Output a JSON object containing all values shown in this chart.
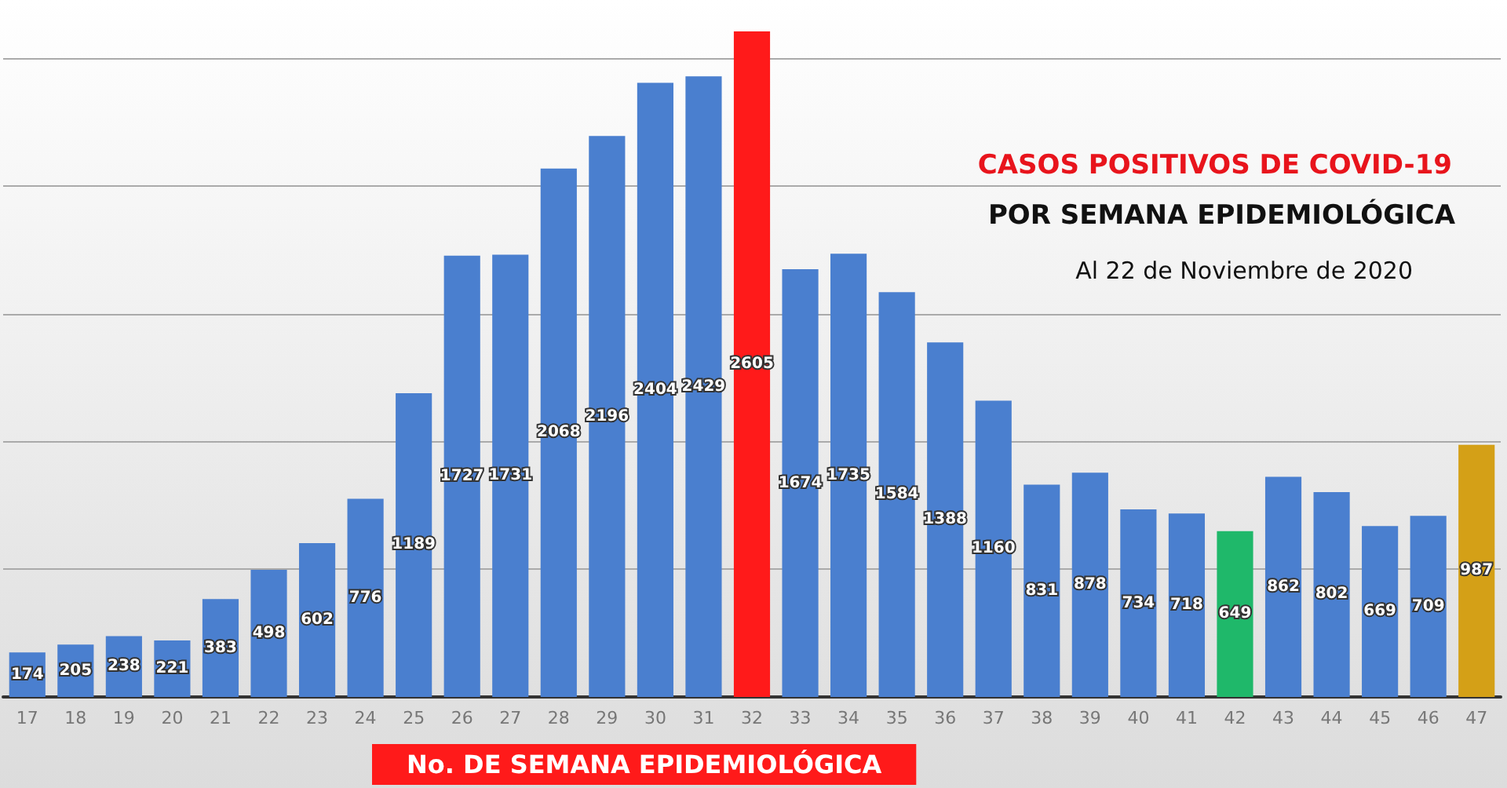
{
  "chart_data": {
    "type": "bar",
    "title": "CASOS POSITIVOS DE COVID-19",
    "subtitle": "POR SEMANA EPIDEMIOLÓGICA",
    "xlabel": "No. DE SEMANA EPIDEMIOLÓGICA",
    "annotations": [
      "Al 22 de Noviembre de 2020"
    ],
    "categories": [
      "17",
      "18",
      "19",
      "20",
      "21",
      "22",
      "23",
      "24",
      "25",
      "26",
      "27",
      "28",
      "29",
      "30",
      "31",
      "32",
      "33",
      "34",
      "35",
      "36",
      "37",
      "38",
      "39",
      "40",
      "41",
      "42",
      "43",
      "44",
      "45",
      "46",
      "47"
    ],
    "values": [
      174,
      205,
      238,
      221,
      383,
      498,
      602,
      776,
      1189,
      1727,
      1731,
      2068,
      2196,
      2404,
      2429,
      2605,
      1674,
      1735,
      1584,
      1388,
      1160,
      831,
      878,
      734,
      718,
      649,
      862,
      802,
      669,
      709,
      987
    ],
    "colors": [
      "#4a7fcf",
      "#4a7fcf",
      "#4a7fcf",
      "#4a7fcf",
      "#4a7fcf",
      "#4a7fcf",
      "#4a7fcf",
      "#4a7fcf",
      "#4a7fcf",
      "#4a7fcf",
      "#4a7fcf",
      "#4a7fcf",
      "#4a7fcf",
      "#4a7fcf",
      "#4a7fcf",
      "#ff1a1a",
      "#4a7fcf",
      "#4a7fcf",
      "#4a7fcf",
      "#4a7fcf",
      "#4a7fcf",
      "#4a7fcf",
      "#4a7fcf",
      "#4a7fcf",
      "#4a7fcf",
      "#1fb86a",
      "#4a7fcf",
      "#4a7fcf",
      "#4a7fcf",
      "#4a7fcf",
      "#d4a017"
    ],
    "yticks": [
      {
        "value": 0,
        "label": null
      },
      {
        "value": 500,
        "label": null
      },
      {
        "value": 1000,
        "label": null
      },
      {
        "value": 1500,
        "label": null
      },
      {
        "value": 2000,
        "label": null
      },
      {
        "value": 2500,
        "label": null
      }
    ],
    "tick_labels": "x",
    "grid": "y",
    "data_labels": true
  }
}
